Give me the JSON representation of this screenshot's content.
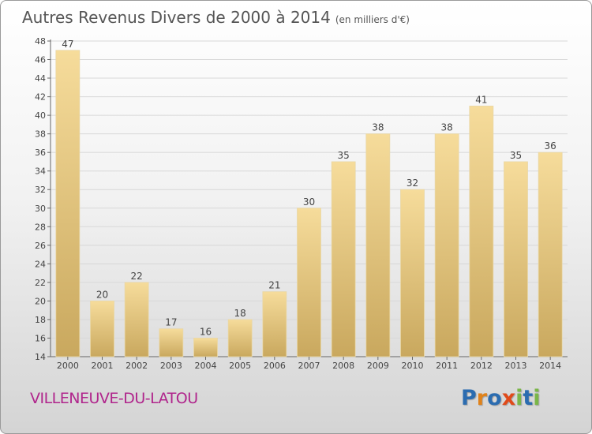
{
  "title": "Autres Revenus Divers de 2000 à 2014",
  "subtitle": "(en milliers d'€)",
  "place_name": "VILLENEUVE-DU-LATOU",
  "brand": {
    "name": "Proxiti",
    "letter_colors": [
      "#2b6cb0",
      "#e0821a",
      "#2b6cb0",
      "#e04a1a",
      "#7ab648",
      "#2b6cb0",
      "#7ab648"
    ]
  },
  "colors": {
    "bar_light": "#f6dc9b",
    "bar_dark": "#c9a85e",
    "title": "#555555",
    "place": "#b0258c",
    "axis": "#666666",
    "grid": "#d8d8d8"
  },
  "chart_data": {
    "type": "bar",
    "categories": [
      "2000",
      "2001",
      "2002",
      "2003",
      "2004",
      "2005",
      "2006",
      "2007",
      "2008",
      "2009",
      "2010",
      "2011",
      "2012",
      "2013",
      "2014"
    ],
    "values": [
      47,
      20,
      22,
      17,
      16,
      18,
      21,
      30,
      35,
      38,
      32,
      38,
      41,
      35,
      36
    ],
    "ylim": [
      14,
      48
    ],
    "yticks": [
      14,
      16,
      18,
      20,
      22,
      24,
      26,
      28,
      30,
      32,
      34,
      36,
      38,
      40,
      42,
      44,
      46,
      48
    ],
    "grid": true,
    "xlabel": "",
    "ylabel": ""
  }
}
